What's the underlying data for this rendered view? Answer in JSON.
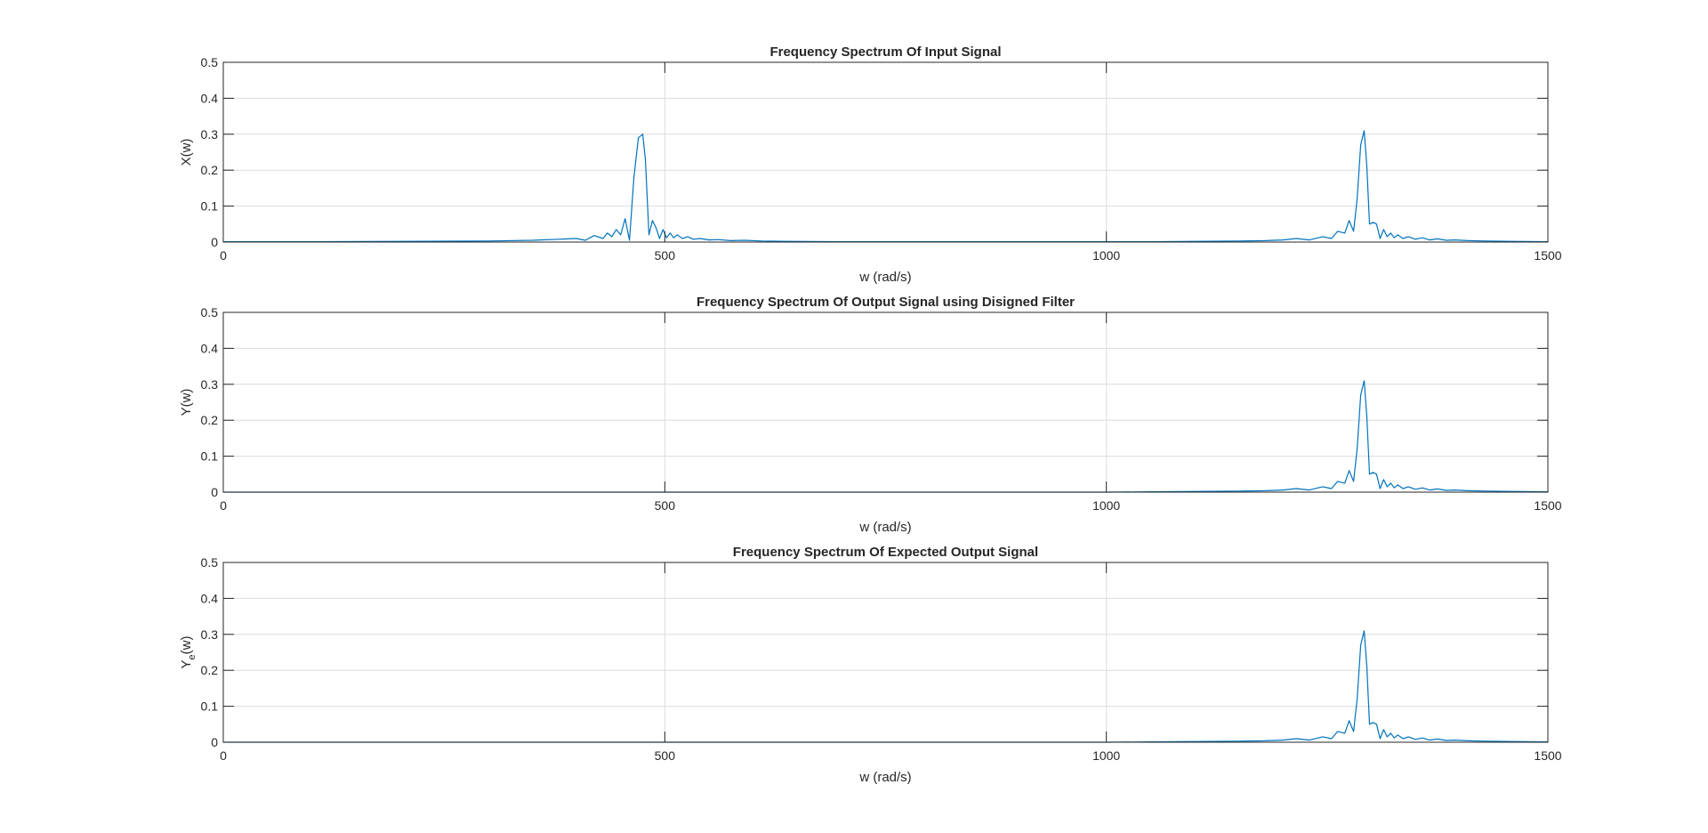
{
  "chart_data": [
    {
      "type": "line",
      "title": "Frequency Spectrum Of Input Signal",
      "xlabel": "w (rad/s)",
      "ylabel": "X(w)",
      "xlim": [
        0,
        1500
      ],
      "ylim": [
        0,
        0.5
      ],
      "xticks": [
        0,
        500,
        1000,
        1500
      ],
      "yticks": [
        0,
        0.1,
        0.2,
        0.3,
        0.4,
        0.5
      ],
      "xtick_labels": [
        "0",
        "500",
        "1000",
        "1500"
      ],
      "ytick_labels": [
        "0",
        "0.1",
        "0.2",
        "0.3",
        "0.4",
        "0.5"
      ],
      "grid": true,
      "color": "#0072bd",
      "series": [
        {
          "x": [
            0,
            100,
            200,
            300,
            350,
            380,
            400,
            410,
            420,
            430,
            435,
            440,
            445,
            450,
            455,
            460,
            465,
            470,
            475,
            478,
            482,
            486,
            490,
            494,
            498,
            502,
            506,
            510,
            514,
            520,
            526,
            532,
            540,
            550,
            560,
            575,
            590,
            610,
            640,
            700,
            800,
            900,
            1000,
            1050,
            1100,
            1150,
            1180,
            1200,
            1215,
            1230,
            1245,
            1255,
            1262,
            1270,
            1275,
            1280,
            1284,
            1288,
            1292,
            1295,
            1298,
            1302,
            1306,
            1310,
            1314,
            1318,
            1322,
            1326,
            1330,
            1336,
            1342,
            1350,
            1358,
            1366,
            1375,
            1385,
            1395,
            1410,
            1430,
            1460,
            1500
          ],
          "y": [
            0.001,
            0.001,
            0.002,
            0.003,
            0.005,
            0.008,
            0.01,
            0.005,
            0.018,
            0.01,
            0.025,
            0.015,
            0.035,
            0.02,
            0.065,
            0.005,
            0.18,
            0.29,
            0.3,
            0.23,
            0.02,
            0.06,
            0.04,
            0.01,
            0.035,
            0.012,
            0.025,
            0.012,
            0.02,
            0.01,
            0.015,
            0.008,
            0.01,
            0.006,
            0.007,
            0.004,
            0.005,
            0.003,
            0.002,
            0.001,
            0.001,
            0.001,
            0.001,
            0.001,
            0.002,
            0.003,
            0.004,
            0.006,
            0.01,
            0.006,
            0.015,
            0.01,
            0.03,
            0.025,
            0.06,
            0.03,
            0.12,
            0.27,
            0.31,
            0.21,
            0.05,
            0.055,
            0.05,
            0.01,
            0.035,
            0.015,
            0.025,
            0.012,
            0.02,
            0.01,
            0.015,
            0.008,
            0.012,
            0.006,
            0.009,
            0.005,
            0.006,
            0.004,
            0.003,
            0.002,
            0.001
          ]
        }
      ]
    },
    {
      "type": "line",
      "title": "Frequency Spectrum Of Output Signal using Disigned Filter",
      "xlabel": "w (rad/s)",
      "ylabel": "Y(w)",
      "xlim": [
        0,
        1500
      ],
      "ylim": [
        0,
        0.5
      ],
      "xticks": [
        0,
        500,
        1000,
        1500
      ],
      "yticks": [
        0,
        0.1,
        0.2,
        0.3,
        0.4,
        0.5
      ],
      "xtick_labels": [
        "0",
        "500",
        "1000",
        "1500"
      ],
      "ytick_labels": [
        "0",
        "0.1",
        "0.2",
        "0.3",
        "0.4",
        "0.5"
      ],
      "grid": true,
      "color": "#0072bd",
      "series": [
        {
          "x": [
            0,
            500,
            1000,
            1050,
            1100,
            1150,
            1180,
            1200,
            1215,
            1230,
            1245,
            1255,
            1262,
            1270,
            1275,
            1280,
            1284,
            1288,
            1292,
            1295,
            1298,
            1302,
            1306,
            1310,
            1314,
            1318,
            1322,
            1326,
            1330,
            1336,
            1342,
            1350,
            1358,
            1366,
            1375,
            1385,
            1395,
            1410,
            1430,
            1460,
            1500
          ],
          "y": [
            0,
            0,
            0,
            0.001,
            0.002,
            0.003,
            0.004,
            0.006,
            0.01,
            0.006,
            0.015,
            0.01,
            0.03,
            0.025,
            0.06,
            0.03,
            0.12,
            0.27,
            0.31,
            0.21,
            0.05,
            0.055,
            0.05,
            0.01,
            0.035,
            0.015,
            0.025,
            0.012,
            0.02,
            0.01,
            0.015,
            0.008,
            0.012,
            0.006,
            0.009,
            0.005,
            0.006,
            0.004,
            0.003,
            0.002,
            0.001
          ]
        }
      ]
    },
    {
      "type": "line",
      "title": "Frequency Spectrum Of Expected Output Signal",
      "xlabel": "w (rad/s)",
      "ylabel_main": "Y",
      "ylabel_sub": "e",
      "ylabel_tail": "(w)",
      "xlim": [
        0,
        1500
      ],
      "ylim": [
        0,
        0.5
      ],
      "xticks": [
        0,
        500,
        1000,
        1500
      ],
      "yticks": [
        0,
        0.1,
        0.2,
        0.3,
        0.4,
        0.5
      ],
      "xtick_labels": [
        "0",
        "500",
        "1000",
        "1500"
      ],
      "ytick_labels": [
        "0",
        "0.1",
        "0.2",
        "0.3",
        "0.4",
        "0.5"
      ],
      "grid": true,
      "color": "#0072bd",
      "series": [
        {
          "x": [
            0,
            500,
            1000,
            1050,
            1100,
            1150,
            1180,
            1200,
            1215,
            1230,
            1245,
            1255,
            1262,
            1270,
            1275,
            1280,
            1284,
            1288,
            1292,
            1295,
            1298,
            1302,
            1306,
            1310,
            1314,
            1318,
            1322,
            1326,
            1330,
            1336,
            1342,
            1350,
            1358,
            1366,
            1375,
            1385,
            1395,
            1410,
            1430,
            1460,
            1500
          ],
          "y": [
            0,
            0,
            0,
            0.001,
            0.002,
            0.003,
            0.004,
            0.006,
            0.01,
            0.006,
            0.015,
            0.01,
            0.03,
            0.025,
            0.06,
            0.03,
            0.12,
            0.27,
            0.31,
            0.21,
            0.05,
            0.055,
            0.05,
            0.01,
            0.035,
            0.015,
            0.025,
            0.012,
            0.02,
            0.01,
            0.015,
            0.008,
            0.012,
            0.006,
            0.009,
            0.005,
            0.006,
            0.004,
            0.003,
            0.002,
            0.001
          ]
        }
      ]
    }
  ]
}
